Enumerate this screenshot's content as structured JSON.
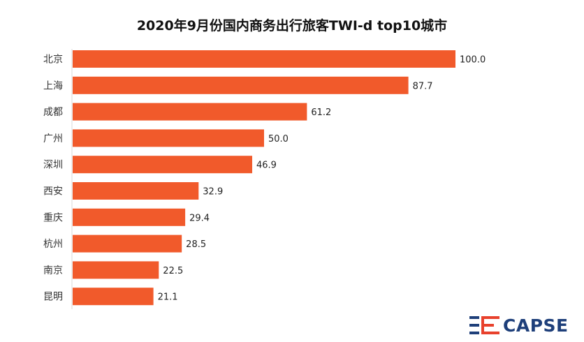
{
  "chart_data": {
    "type": "bar",
    "orientation": "horizontal",
    "title": "2020年9月份国内商务出行旅客TWI-d top10城市",
    "categories": [
      "北京",
      "上海",
      "成都",
      "广州",
      "深圳",
      "西安",
      "重庆",
      "杭州",
      "南京",
      "昆明"
    ],
    "values": [
      100.0,
      87.7,
      61.2,
      50.0,
      46.9,
      32.9,
      29.4,
      28.5,
      22.5,
      21.1
    ],
    "value_labels": [
      "100.0",
      "87.7",
      "61.2",
      "50.0",
      "46.9",
      "32.9",
      "29.4",
      "28.5",
      "22.5",
      "21.1"
    ],
    "xlim": [
      0,
      100
    ],
    "xlabel": "",
    "ylabel": "",
    "grid": false,
    "legend": "none",
    "bar_color": "#F15A2B"
  },
  "brand": {
    "logo_text": "CAPSE",
    "logo_color": "#1E3F7A",
    "accent_color": "#E8412C"
  }
}
